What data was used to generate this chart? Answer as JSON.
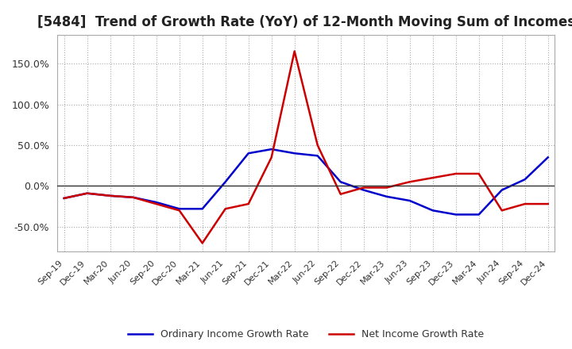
{
  "title": "[5484]  Trend of Growth Rate (YoY) of 12-Month Moving Sum of Incomes",
  "title_fontsize": 12,
  "background_color": "#ffffff",
  "grid_color": "#aaaaaa",
  "ordinary_color": "#0000cc",
  "net_color": "#cc0000",
  "legend_ordinary": "Ordinary Income Growth Rate",
  "legend_net": "Net Income Growth Rate",
  "ylim": [
    -80,
    185
  ],
  "yticks": [
    -50,
    0,
    50,
    100,
    150
  ],
  "yticklabels": [
    "-50.0%",
    "0.0%",
    "50.0%",
    "100.0%",
    "150.0%"
  ],
  "dates": [
    "Sep-19",
    "Dec-19",
    "Mar-20",
    "Jun-20",
    "Sep-20",
    "Dec-20",
    "Mar-21",
    "Jun-21",
    "Sep-21",
    "Dec-21",
    "Mar-22",
    "Jun-22",
    "Sep-22",
    "Dec-22",
    "Mar-23",
    "Jun-23",
    "Sep-23",
    "Dec-23",
    "Mar-24",
    "Jun-24",
    "Sep-24",
    "Dec-24"
  ],
  "ordinary_income": [
    -15,
    -9,
    -12,
    -14,
    -20,
    -28,
    -28,
    5,
    40,
    45,
    40,
    37,
    5,
    -5,
    -13,
    -18,
    -30,
    -35,
    -35,
    -5,
    8,
    35
  ],
  "net_income": [
    -15,
    -9,
    -12,
    -14,
    -22,
    -30,
    -70,
    -28,
    -22,
    35,
    165,
    50,
    -10,
    -2,
    -2,
    5,
    10,
    15,
    15,
    -30,
    -22,
    -22
  ]
}
